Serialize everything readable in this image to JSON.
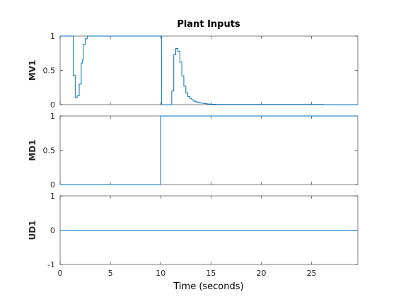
{
  "colors": {
    "series": "#0072bd",
    "axis": "#262626"
  },
  "chart_data": {
    "type": "line",
    "title": "Plant Inputs",
    "xlabel": "Time (seconds)",
    "xlim": [
      0,
      29.6
    ],
    "xticks": [
      0,
      5,
      10,
      15,
      20,
      25
    ],
    "grid": false,
    "step": true,
    "subplots": [
      {
        "ylabel": "MV1",
        "ylim": [
          0,
          1
        ],
        "yticks": [
          0,
          0.5,
          1
        ],
        "series": [
          {
            "x": [
              0,
              1.2,
              1.3,
              1.4,
              1.5,
              1.6,
              1.7,
              1.8,
              1.9,
              2.0,
              2.1,
              2.2,
              2.3,
              2.4,
              2.5,
              2.6,
              2.7,
              10.0,
              10.1,
              10.9,
              11.1,
              11.3,
              11.5,
              11.7,
              11.9,
              12.1,
              12.3,
              12.5,
              12.7,
              12.9,
              13.1,
              13.3,
              13.5,
              13.7,
              13.9,
              14.1,
              14.3,
              14.5,
              14.7,
              14.9,
              15.1,
              15.5,
              26.2,
              29.6
            ],
            "y": [
              1,
              1,
              0.43,
              0.43,
              0.1,
              0.1,
              0.13,
              0.13,
              0.3,
              0.3,
              0.6,
              0.65,
              0.88,
              0.88,
              0.96,
              0.96,
              1.0,
              1.0,
              0,
              0,
              0.2,
              0.73,
              0.82,
              0.78,
              0.62,
              0.42,
              0.27,
              0.17,
              0.12,
              0.09,
              0.07,
              0.05,
              0.04,
              0.03,
              0.025,
              0.02,
              0.015,
              0.012,
              0.009,
              0.007,
              0.005,
              0.003,
              0.0,
              0.0
            ]
          }
        ]
      },
      {
        "ylabel": "MD1",
        "ylim": [
          0,
          1
        ],
        "yticks": [
          0,
          0.5,
          1
        ],
        "series": [
          {
            "x": [
              0,
              10,
              29.6
            ],
            "y": [
              0,
              1,
              1
            ]
          }
        ]
      },
      {
        "ylabel": "UD1",
        "ylim": [
          -1,
          1
        ],
        "yticks": [
          -1,
          0,
          1
        ],
        "series": [
          {
            "x": [
              0,
              29.6
            ],
            "y": [
              0,
              0
            ]
          }
        ]
      }
    ]
  }
}
